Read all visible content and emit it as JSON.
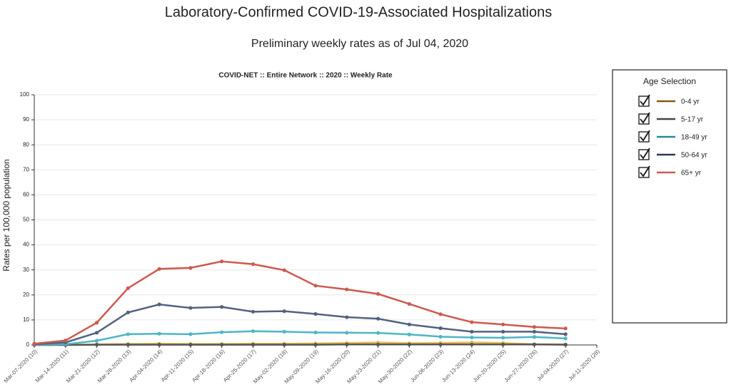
{
  "chart_data": {
    "type": "line",
    "title": "Laboratory-Confirmed COVID-19-Associated Hospitalizations",
    "subtitle": "Preliminary weekly rates as of Jul 04, 2020",
    "chart_title": "COVID-NET :: Entire Network :: 2020 :: Weekly Rate",
    "y_label": "Rates per 100,000 population",
    "legend_title": "Age Selection",
    "categories": [
      "Mar-07-2020 (10)",
      "Mar-14-2020 (11)",
      "Mar-21-2020 (12)",
      "Mar-28-2020 (13)",
      "Apr-04-2020 (14)",
      "Apr-11-2020 (15)",
      "Apr-18-2020 (16)",
      "Apr-25-2020 (17)",
      "May-02-2020 (18)",
      "May-09-2020 (19)",
      "May-16-2020 (20)",
      "May-23-2020 (21)",
      "May-30-2020 (22)",
      "Jun-06-2020 (23)",
      "Jun-13-2020 (24)",
      "Jun-20-2020 (25)",
      "Jun-27-2020 (26)",
      "Jul-04-2020 (27)",
      "Jul-11-2020 (28)"
    ],
    "series": [
      {
        "name": "0-4 yr",
        "color": "#e8b94a",
        "legend_color": "#8b5a10",
        "values": [
          0.0,
          0.1,
          0.2,
          0.4,
          0.5,
          0.4,
          0.4,
          0.5,
          0.5,
          0.6,
          0.8,
          1.0,
          0.7,
          0.8,
          1.0,
          0.8,
          0.3,
          0.2,
          null
        ]
      },
      {
        "name": "5-17 yr",
        "color": "#555555",
        "legend_color": "#444444",
        "values": [
          0.0,
          0.0,
          0.1,
          0.1,
          0.1,
          0.1,
          0.1,
          0.1,
          0.1,
          0.1,
          0.2,
          0.2,
          0.2,
          0.2,
          0.2,
          0.2,
          0.2,
          0.1,
          null
        ]
      },
      {
        "name": "18-49 yr",
        "color": "#4db6c6",
        "legend_color": "#1f8b9b",
        "values": [
          0.1,
          0.3,
          1.7,
          4.3,
          4.5,
          4.3,
          5.1,
          5.5,
          5.3,
          5.0,
          4.9,
          4.8,
          4.2,
          3.3,
          3.0,
          2.9,
          3.2,
          2.6,
          null
        ]
      },
      {
        "name": "50-64 yr",
        "color": "#52627f",
        "legend_color": "#2b3a55",
        "values": [
          0.3,
          1.0,
          4.9,
          13.0,
          16.2,
          14.8,
          15.2,
          13.3,
          13.5,
          12.4,
          11.1,
          10.5,
          8.2,
          6.7,
          5.3,
          5.3,
          5.3,
          4.3,
          null
        ]
      },
      {
        "name": "65+ yr",
        "color": "#cc5a4e",
        "legend_color": "#cc5a4e",
        "values": [
          0.5,
          1.8,
          8.9,
          22.7,
          30.4,
          30.8,
          33.4,
          32.3,
          29.9,
          23.7,
          22.2,
          20.4,
          16.4,
          12.3,
          9.1,
          8.2,
          7.2,
          6.6,
          null
        ]
      }
    ],
    "ylim": [
      0,
      100
    ],
    "yticks": [
      0,
      10,
      20,
      30,
      40,
      50,
      60,
      70,
      80,
      90,
      100
    ],
    "grid": true
  }
}
